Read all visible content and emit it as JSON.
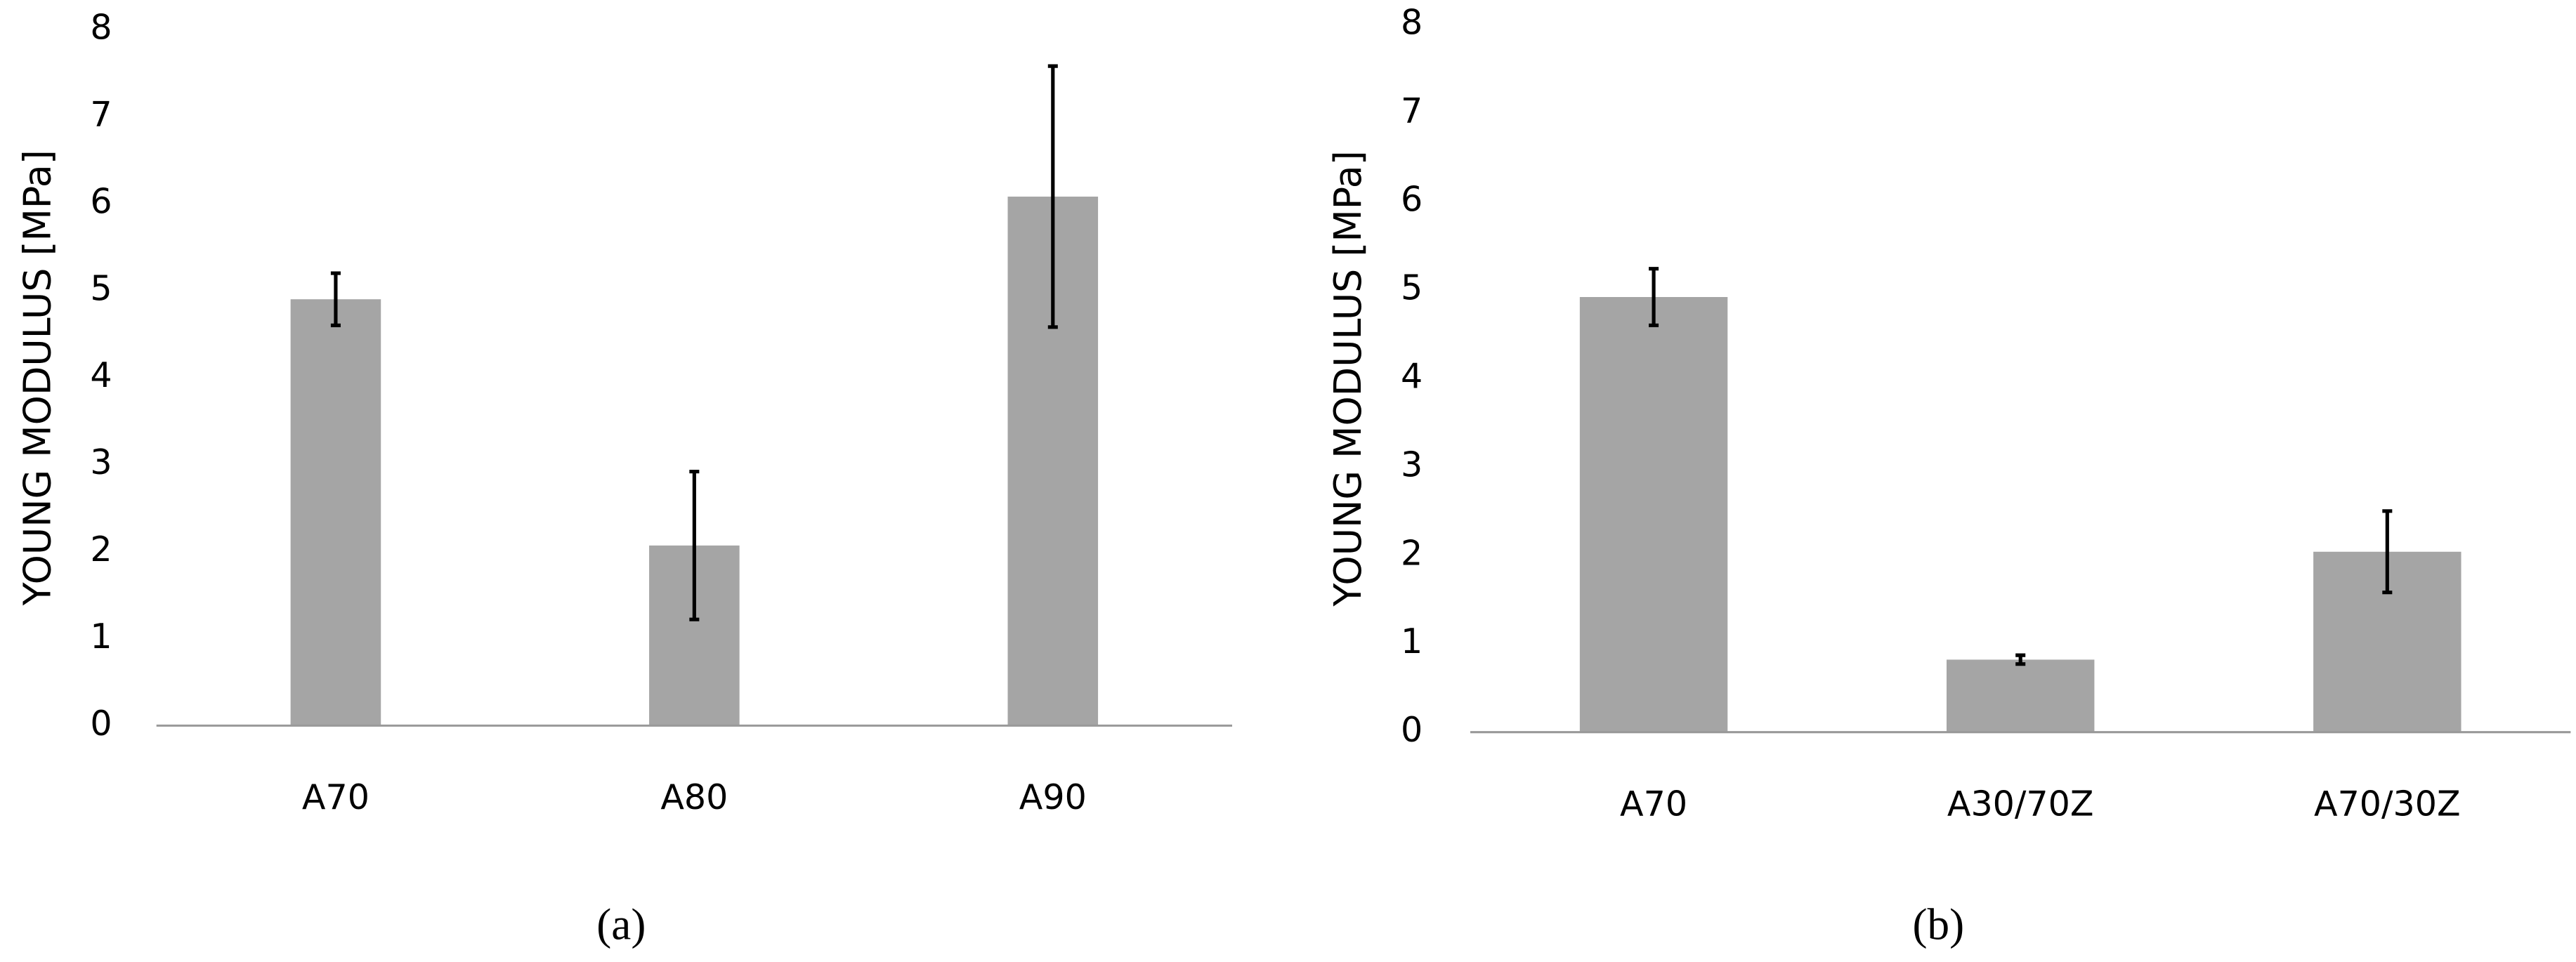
{
  "chart_data": [
    {
      "type": "bar",
      "caption": "(a)",
      "ylabel": "YOUNG MODULUS [MPa]",
      "categories": [
        "A70",
        "A80",
        "A90"
      ],
      "values": [
        4.9,
        2.07,
        6.08
      ],
      "errors": [
        0.3,
        0.85,
        1.5
      ],
      "color": "#a5a5a5",
      "ylim": [
        0,
        8
      ],
      "yticks": [
        0,
        1,
        2,
        3,
        4,
        5,
        6,
        7,
        8
      ],
      "grid": false
    },
    {
      "type": "bar",
      "caption": "(b)",
      "ylabel": "YOUNG MODULUS [MPa]",
      "categories": [
        "A70",
        "A30/70Z",
        "A70/30Z"
      ],
      "values": [
        4.92,
        0.82,
        2.04
      ],
      "errors": [
        0.32,
        0.05,
        0.46
      ],
      "color": "#a5a5a5",
      "ylim": [
        0,
        8
      ],
      "yticks": [
        0,
        1,
        2,
        3,
        4,
        5,
        6,
        7,
        8
      ],
      "grid": false
    }
  ]
}
